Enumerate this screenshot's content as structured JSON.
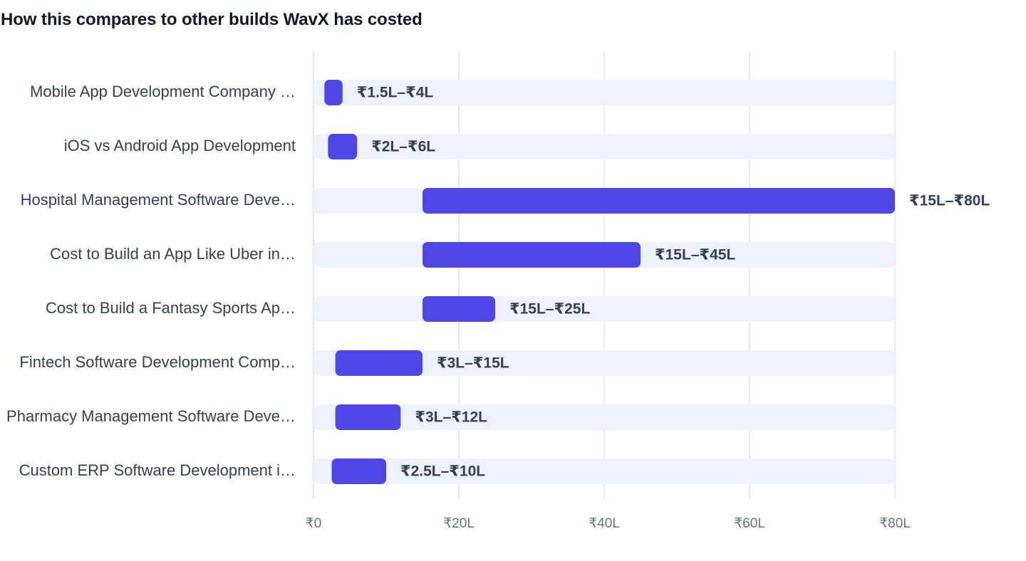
{
  "chart_data": {
    "type": "bar",
    "subtype": "range-bar-horizontal",
    "title": "How this compares to other builds WavX has costed",
    "xlabel": "",
    "ylabel": "",
    "unit": "₹ lakh",
    "xlim": [
      0,
      80
    ],
    "xticks": [
      0,
      20,
      40,
      60,
      80
    ],
    "xtick_labels": [
      "₹0",
      "₹20L",
      "₹40L",
      "₹60L",
      "₹80L"
    ],
    "grid": true,
    "legend": "none",
    "colors": {
      "bar": "#4f46e5",
      "track": "#eef2ff",
      "grid": "#e2e5ea"
    },
    "categories": [
      "Mobile App Development Company …",
      "iOS vs Android App Development",
      "Hospital Management Software Deve…",
      "Cost to Build an App Like Uber in…",
      "Cost to Build a Fantasy Sports Ap…",
      "Fintech Software Development Comp…",
      "Pharmacy Management Software Deve…",
      "Custom ERP Software Development i…"
    ],
    "ranges": [
      [
        1.5,
        4
      ],
      [
        2,
        6
      ],
      [
        15,
        80
      ],
      [
        15,
        45
      ],
      [
        15,
        25
      ],
      [
        3,
        15
      ],
      [
        3,
        12
      ],
      [
        2.5,
        10
      ]
    ],
    "value_labels": [
      "₹1.5L–₹4L",
      "₹2L–₹6L",
      "₹15L–₹80L",
      "₹15L–₹45L",
      "₹15L–₹25L",
      "₹3L–₹15L",
      "₹3L–₹12L",
      "₹2.5L–₹10L"
    ]
  }
}
